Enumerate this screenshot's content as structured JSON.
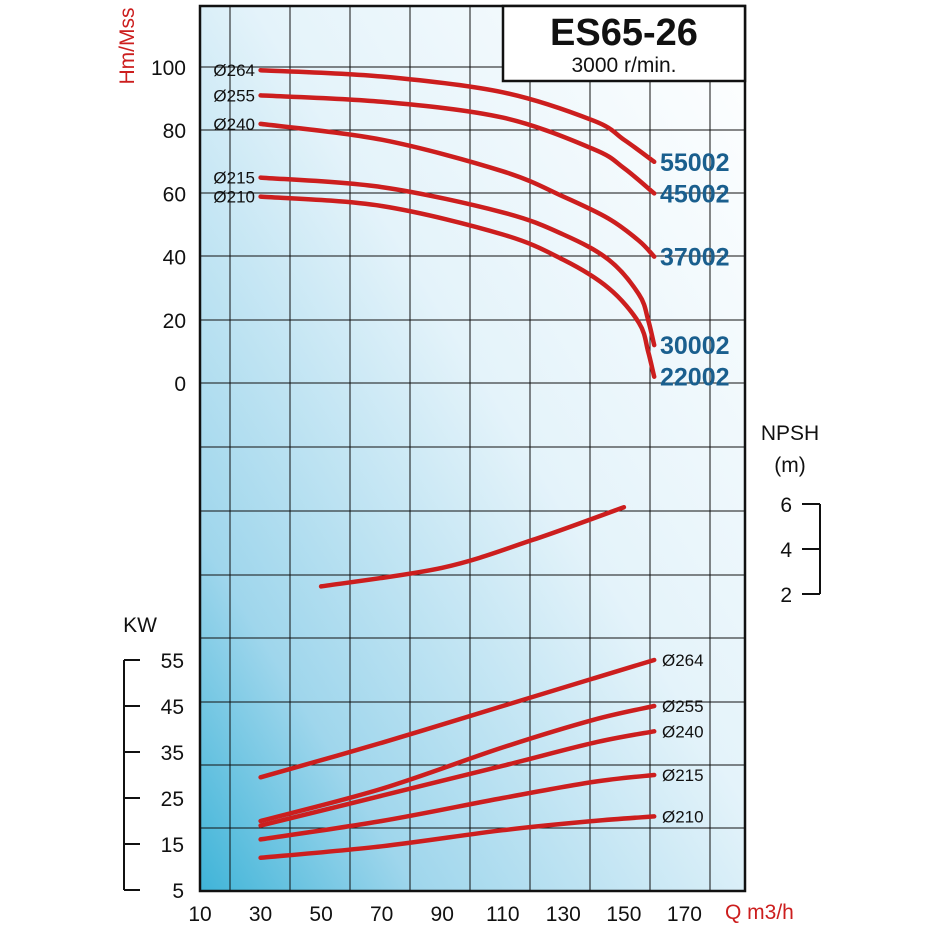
{
  "chart_data": {
    "type": "line",
    "title": "ES65-26",
    "subtitle": "3000 r/min.",
    "xlabel": "Q m3/h",
    "x_ticks": [
      10,
      30,
      50,
      70,
      90,
      110,
      130,
      150,
      170
    ],
    "xlim": [
      10,
      190
    ],
    "head_panel": {
      "ylabel": "Hm/Mss",
      "y_ticks": [
        0,
        20,
        40,
        60,
        80,
        100
      ],
      "ylim": [
        0,
        100
      ],
      "series": [
        {
          "name": "Ø264",
          "model": "55002",
          "points": [
            [
              30,
              99
            ],
            [
              70,
              97
            ],
            [
              110,
              92
            ],
            [
              140,
              83
            ],
            [
              150,
              77
            ],
            [
              160,
              70
            ]
          ]
        },
        {
          "name": "Ø255",
          "model": "45002",
          "points": [
            [
              30,
              91
            ],
            [
              70,
              89
            ],
            [
              110,
              84
            ],
            [
              140,
              74
            ],
            [
              150,
              68
            ],
            [
              160,
              60
            ]
          ]
        },
        {
          "name": "Ø240",
          "model": "37002",
          "points": [
            [
              30,
              82
            ],
            [
              70,
              77
            ],
            [
              110,
              67
            ],
            [
              130,
              59
            ],
            [
              145,
              52
            ],
            [
              155,
              45
            ],
            [
              160,
              40
            ]
          ]
        },
        {
          "name": "Ø215",
          "model": "30002",
          "points": [
            [
              30,
              65
            ],
            [
              70,
              62
            ],
            [
              110,
              54
            ],
            [
              130,
              47
            ],
            [
              145,
              39
            ],
            [
              155,
              28
            ],
            [
              158,
              20
            ],
            [
              160,
              12
            ]
          ]
        },
        {
          "name": "Ø210",
          "model": "22002",
          "points": [
            [
              30,
              59
            ],
            [
              70,
              56
            ],
            [
              110,
              47
            ],
            [
              130,
              39
            ],
            [
              145,
              30
            ],
            [
              155,
              19
            ],
            [
              158,
              10
            ],
            [
              160,
              2
            ]
          ]
        }
      ]
    },
    "npsh_panel": {
      "title": "NPSH",
      "unit": "(m)",
      "y_ticks": [
        2,
        4,
        6
      ],
      "ylim": [
        2,
        6
      ],
      "series": [
        {
          "name": "",
          "points": [
            [
              50,
              2.3
            ],
            [
              90,
              3.1
            ],
            [
              120,
              4.3
            ],
            [
              150,
              5.7
            ]
          ]
        }
      ]
    },
    "power_panel": {
      "ylabel": "KW",
      "y_ticks": [
        5,
        15,
        25,
        35,
        45,
        55
      ],
      "ylim": [
        5,
        55
      ],
      "series": [
        {
          "name": "Ø264",
          "points": [
            [
              30,
              29.5
            ],
            [
              70,
              37
            ],
            [
              110,
              45
            ],
            [
              140,
              51
            ],
            [
              160,
              55
            ]
          ]
        },
        {
          "name": "Ø255",
          "points": [
            [
              30,
              20
            ],
            [
              70,
              27
            ],
            [
              110,
              36
            ],
            [
              140,
              42
            ],
            [
              160,
              45
            ]
          ]
        },
        {
          "name": "Ø240",
          "points": [
            [
              30,
              19
            ],
            [
              70,
              25.5
            ],
            [
              110,
              32
            ],
            [
              140,
              37
            ],
            [
              160,
              39.5
            ]
          ]
        },
        {
          "name": "Ø215",
          "points": [
            [
              30,
              16
            ],
            [
              70,
              20
            ],
            [
              110,
              25
            ],
            [
              140,
              28.5
            ],
            [
              160,
              30
            ]
          ]
        },
        {
          "name": "Ø210",
          "points": [
            [
              30,
              12
            ],
            [
              70,
              14.5
            ],
            [
              110,
              18
            ],
            [
              140,
              20
            ],
            [
              160,
              21
            ]
          ]
        }
      ]
    },
    "grid": true,
    "colors": {
      "curve": "#cc1e1e",
      "model_label": "#1a5f8e",
      "axis_title": "#cc1e1e",
      "grid": "#111111",
      "bg_light": "#ffffff",
      "bg_dark": "#3fb4d8"
    }
  }
}
